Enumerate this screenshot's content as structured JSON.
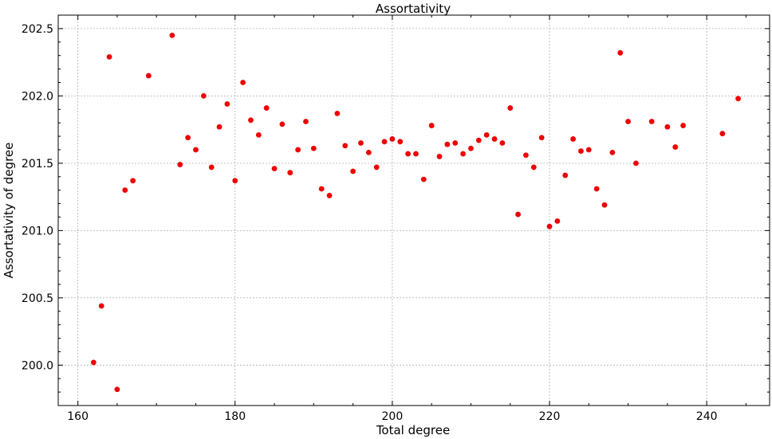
{
  "chart_data": {
    "type": "scatter",
    "title": "Assortativity",
    "xlabel": "Total degree",
    "ylabel": "Assortativity of degree",
    "xlim": [
      157.5,
      248
    ],
    "ylim": [
      199.7,
      202.6
    ],
    "xticks": [
      160,
      180,
      200,
      220,
      240
    ],
    "xtick_labels": [
      "160",
      "180",
      "200",
      "220",
      "240"
    ],
    "yticks": [
      200.0,
      200.5,
      201.0,
      201.5,
      202.0,
      202.5
    ],
    "ytick_labels": [
      "200.0",
      "200.5",
      "201.0",
      "201.5",
      "202.0",
      "202.5"
    ],
    "grid": true,
    "marker_color": "#ee0000",
    "x": [
      162,
      163,
      164,
      165,
      166,
      167,
      169,
      172,
      173,
      174,
      175,
      176,
      177,
      178,
      179,
      180,
      181,
      182,
      183,
      184,
      185,
      186,
      187,
      188,
      189,
      190,
      191,
      192,
      193,
      194,
      195,
      196,
      197,
      198,
      199,
      200,
      201,
      202,
      203,
      204,
      205,
      206,
      207,
      208,
      209,
      210,
      211,
      212,
      213,
      214,
      215,
      216,
      217,
      218,
      219,
      220,
      221,
      222,
      223,
      224,
      225,
      226,
      227,
      228,
      229,
      230,
      231,
      233,
      235,
      236,
      237,
      242,
      244
    ],
    "y": [
      200.02,
      200.44,
      202.29,
      199.82,
      201.3,
      201.37,
      202.15,
      202.45,
      201.49,
      201.69,
      201.6,
      202.0,
      201.47,
      201.77,
      201.94,
      201.37,
      202.1,
      201.82,
      201.71,
      201.91,
      201.46,
      201.79,
      201.43,
      201.6,
      201.81,
      201.61,
      201.31,
      201.26,
      201.87,
      201.63,
      201.44,
      201.65,
      201.58,
      201.47,
      201.66,
      201.68,
      201.66,
      201.57,
      201.57,
      201.38,
      201.78,
      201.55,
      201.64,
      201.65,
      201.57,
      201.61,
      201.67,
      201.71,
      201.68,
      201.65,
      201.91,
      201.12,
      201.56,
      201.47,
      201.69,
      201.03,
      201.07,
      201.41,
      201.68,
      201.59,
      201.6,
      201.31,
      201.19,
      201.58,
      202.32,
      201.81,
      201.5,
      201.81,
      201.77,
      201.62,
      201.78,
      201.72,
      201.98
    ]
  }
}
